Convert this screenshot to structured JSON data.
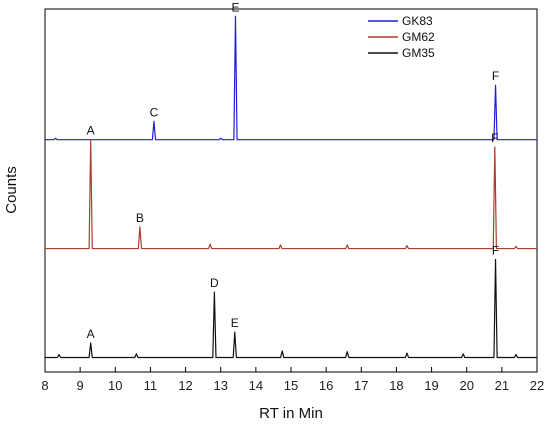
{
  "chart_data": {
    "type": "line",
    "title": "",
    "xlabel": "RT in Min",
    "ylabel": "Counts",
    "xlim": [
      8,
      22
    ],
    "x_ticks": [
      "8",
      "9",
      "10",
      "11",
      "12",
      "13",
      "14",
      "15",
      "16",
      "17",
      "18",
      "19",
      "20",
      "21",
      "22"
    ],
    "grid": false,
    "y_tick_labels": false,
    "legend": {
      "placement": "top-right"
    },
    "series": [
      {
        "name": "GK83",
        "color": "#1f1fd6",
        "baseline_offset": 0.64,
        "peaks": [
          {
            "label": "C",
            "x": 11.1,
            "height": 0.05
          },
          {
            "label": "E",
            "x": 13.42,
            "height": 0.34
          },
          {
            "label": "F",
            "x": 20.82,
            "height": 0.15
          }
        ],
        "noise": [
          {
            "x": 8.3,
            "height": 0.004
          },
          {
            "x": 13.0,
            "height": 0.004
          }
        ]
      },
      {
        "name": "GM62",
        "color": "#b03a2e",
        "baseline_offset": 0.34,
        "peaks": [
          {
            "label": "A",
            "x": 9.3,
            "height": 0.3
          },
          {
            "label": "B",
            "x": 10.7,
            "height": 0.06
          },
          {
            "label": "F",
            "x": 20.8,
            "height": 0.28
          }
        ],
        "noise": [
          {
            "x": 12.7,
            "height": 0.012
          },
          {
            "x": 14.7,
            "height": 0.01
          },
          {
            "x": 16.6,
            "height": 0.01
          },
          {
            "x": 18.3,
            "height": 0.008
          },
          {
            "x": 21.4,
            "height": 0.006
          }
        ]
      },
      {
        "name": "GM35",
        "color": "#111111",
        "baseline_offset": 0.04,
        "peaks": [
          {
            "label": "A",
            "x": 9.3,
            "height": 0.04
          },
          {
            "label": "D",
            "x": 12.82,
            "height": 0.18
          },
          {
            "label": "E",
            "x": 13.4,
            "height": 0.07
          },
          {
            "label": "F",
            "x": 20.82,
            "height": 0.27
          }
        ],
        "noise": [
          {
            "x": 8.4,
            "height": 0.008
          },
          {
            "x": 10.6,
            "height": 0.01
          },
          {
            "x": 14.75,
            "height": 0.018
          },
          {
            "x": 16.6,
            "height": 0.016
          },
          {
            "x": 18.3,
            "height": 0.012
          },
          {
            "x": 19.9,
            "height": 0.01
          },
          {
            "x": 21.4,
            "height": 0.008
          }
        ]
      }
    ]
  }
}
